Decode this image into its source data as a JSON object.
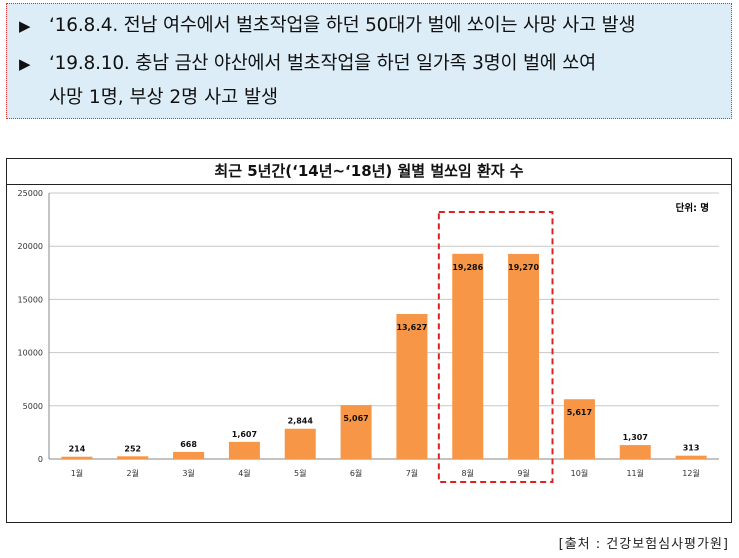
{
  "news": {
    "items": [
      {
        "bullet": "▶",
        "text": "‘16.8.4. 전남 여수에서 벌초작업을 하던 50대가 벌에 쏘이는 사망 사고 발생"
      },
      {
        "bullet": "▶",
        "text": "‘19.8.10. 충남 금산 야산에서 벌초작업을 하던 일가족 3명이 벌에 쏘여",
        "continuation": "사망 1명, 부상 2명 사고 발생"
      }
    ]
  },
  "chart_data": {
    "type": "bar",
    "title": "최근 5년간(‘14년~‘18년) 월별 벌쏘임 환자 수",
    "unit_label": "단위: 명",
    "categories": [
      "1월",
      "2월",
      "3월",
      "4월",
      "5월",
      "6월",
      "7월",
      "8월",
      "9월",
      "10월",
      "11월",
      "12월"
    ],
    "values": [
      214,
      252,
      668,
      1607,
      2844,
      5067,
      13627,
      19286,
      19270,
      5617,
      1307,
      313
    ],
    "value_labels": [
      "214",
      "252",
      "668",
      "1,607",
      "2,844",
      "5,067",
      "13,627",
      "19,286",
      "19,270",
      "5,617",
      "1,307",
      "313"
    ],
    "ylim": [
      0,
      25000
    ],
    "yticks": [
      0,
      5000,
      10000,
      15000,
      20000,
      25000
    ],
    "ytick_labels": [
      "0",
      "5000",
      "10000",
      "15000",
      "20000",
      "25000"
    ],
    "grid": true,
    "bar_color": "#f79646",
    "highlight": {
      "categories": [
        "8월",
        "9월"
      ],
      "style": "dashed-box",
      "color": "#e02020"
    }
  },
  "source": "[출처 : 건강보험심사평가원]"
}
